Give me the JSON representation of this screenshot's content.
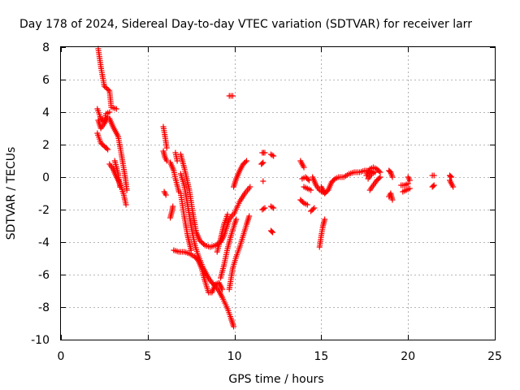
{
  "chart_data": {
    "type": "scatter",
    "title": "Day 178 of 2024, Sidereal Day-to-day VTEC variation (SDTVAR) for receiver larr",
    "xlabel": "GPS time / hours",
    "ylabel": "SDTVAR / TECUs",
    "xlim": [
      0,
      25
    ],
    "ylim": [
      -10,
      8
    ],
    "xticks": [
      0,
      5,
      10,
      15,
      20,
      25
    ],
    "yticks": [
      -10,
      -8,
      -6,
      -4,
      -2,
      0,
      2,
      4,
      6,
      8
    ],
    "grid": true,
    "marker": "plus",
    "color": "#ff0000",
    "segments": [
      [
        [
          2.15,
          7.9
        ],
        [
          2.3,
          6.8
        ],
        [
          2.5,
          5.6
        ],
        [
          2.8,
          5.3
        ],
        [
          2.9,
          4.3
        ],
        [
          3.2,
          4.2
        ]
      ],
      [
        [
          2.1,
          4.2
        ],
        [
          2.3,
          3.6
        ],
        [
          2.5,
          3.4
        ],
        [
          2.6,
          3.9
        ],
        [
          2.8,
          4.0
        ]
      ],
      [
        [
          2.15,
          3.5
        ],
        [
          2.3,
          3.0
        ],
        [
          2.5,
          3.3
        ],
        [
          2.7,
          3.7
        ]
      ],
      [
        [
          2.1,
          2.7
        ],
        [
          2.3,
          2.1
        ],
        [
          2.5,
          1.9
        ],
        [
          2.7,
          1.7
        ]
      ],
      [
        [
          2.8,
          3.6
        ],
        [
          3.0,
          3.1
        ],
        [
          3.3,
          2.5
        ],
        [
          3.5,
          1.3
        ],
        [
          3.7,
          0.0
        ],
        [
          3.8,
          -0.8
        ]
      ],
      [
        [
          2.8,
          0.8
        ],
        [
          3.0,
          0.5
        ],
        [
          3.2,
          0.0
        ],
        [
          3.4,
          -0.4
        ],
        [
          3.6,
          -1.0
        ],
        [
          3.75,
          -1.7
        ]
      ],
      [
        [
          3.1,
          1.0
        ],
        [
          3.3,
          0.2
        ],
        [
          3.4,
          -0.6
        ]
      ],
      [
        [
          5.9,
          3.1
        ],
        [
          6.0,
          2.5
        ],
        [
          6.1,
          1.8
        ]
      ],
      [
        [
          5.9,
          1.6
        ],
        [
          6.0,
          1.2
        ],
        [
          6.1,
          1.0
        ]
      ],
      [
        [
          5.95,
          -0.9
        ],
        [
          6.05,
          -1.1
        ]
      ],
      [
        [
          6.3,
          -2.5
        ],
        [
          6.4,
          -2.1
        ],
        [
          6.45,
          -1.8
        ]
      ],
      [
        [
          6.3,
          0.9
        ],
        [
          6.5,
          0.4
        ],
        [
          6.6,
          -0.1
        ],
        [
          6.8,
          -0.9
        ]
      ],
      [
        [
          6.6,
          1.5
        ],
        [
          6.7,
          1.0
        ]
      ],
      [
        [
          6.9,
          1.4
        ],
        [
          7.1,
          0.6
        ],
        [
          7.4,
          -0.8
        ],
        [
          7.6,
          -2.2
        ],
        [
          7.8,
          -3.4
        ],
        [
          8.0,
          -3.9
        ],
        [
          8.3,
          -4.2
        ],
        [
          8.6,
          -4.3
        ],
        [
          8.9,
          -4.2
        ],
        [
          9.2,
          -4.0
        ],
        [
          9.4,
          -3.6
        ],
        [
          9.7,
          -2.6
        ],
        [
          10.0,
          -2.2
        ],
        [
          10.3,
          -1.5
        ],
        [
          10.6,
          -1.0
        ],
        [
          10.9,
          -0.6
        ]
      ],
      [
        [
          6.9,
          0.2
        ],
        [
          7.1,
          -0.5
        ],
        [
          7.3,
          -1.7
        ],
        [
          7.5,
          -3.0
        ],
        [
          7.7,
          -4.1
        ],
        [
          7.9,
          -4.8
        ],
        [
          8.2,
          -5.6
        ],
        [
          8.5,
          -6.2
        ],
        [
          8.7,
          -6.5
        ],
        [
          8.9,
          -6.7
        ],
        [
          9.1,
          -7.0
        ],
        [
          9.3,
          -7.4
        ],
        [
          9.6,
          -8.1
        ],
        [
          9.8,
          -8.7
        ],
        [
          9.95,
          -9.2
        ]
      ],
      [
        [
          6.5,
          -4.5
        ],
        [
          6.8,
          -4.6
        ],
        [
          7.1,
          -4.6
        ],
        [
          7.4,
          -4.7
        ],
        [
          7.7,
          -4.9
        ],
        [
          7.9,
          -5.1
        ],
        [
          8.1,
          -5.6
        ],
        [
          8.3,
          -6.4
        ],
        [
          8.5,
          -7.1
        ],
        [
          8.7,
          -7.1
        ],
        [
          8.9,
          -6.6
        ],
        [
          9.1,
          -6.5
        ],
        [
          9.3,
          -6.9
        ]
      ],
      [
        [
          6.9,
          -1.0
        ],
        [
          7.1,
          -2.4
        ],
        [
          7.3,
          -3.6
        ],
        [
          7.5,
          -4.5
        ]
      ],
      [
        [
          9.7,
          -6.9
        ],
        [
          9.9,
          -5.6
        ],
        [
          10.1,
          -4.9
        ],
        [
          10.3,
          -4.3
        ],
        [
          10.5,
          -3.6
        ],
        [
          10.7,
          -2.9
        ],
        [
          10.85,
          -2.4
        ]
      ],
      [
        [
          9.2,
          -6.2
        ],
        [
          9.4,
          -5.4
        ],
        [
          9.6,
          -4.4
        ],
        [
          9.8,
          -3.6
        ],
        [
          10.0,
          -2.9
        ],
        [
          10.1,
          -2.6
        ]
      ],
      [
        [
          9.0,
          -4.6
        ],
        [
          9.2,
          -3.8
        ],
        [
          9.4,
          -2.9
        ],
        [
          9.6,
          -2.3
        ]
      ],
      [
        [
          9.95,
          -0.6
        ],
        [
          10.1,
          -0.1
        ],
        [
          10.3,
          0.4
        ],
        [
          10.5,
          0.8
        ],
        [
          10.7,
          1.0
        ]
      ],
      [
        [
          9.7,
          5.0
        ],
        [
          9.8,
          5.0
        ],
        [
          9.9,
          5.0
        ]
      ],
      [
        [
          11.6,
          1.5
        ],
        [
          11.75,
          1.5
        ]
      ],
      [
        [
          11.55,
          0.8
        ],
        [
          11.65,
          0.9
        ]
      ],
      [
        [
          11.6,
          -2.0
        ],
        [
          11.75,
          -1.9
        ]
      ],
      [
        [
          11.65,
          -0.25
        ]
      ],
      [
        [
          12.1,
          1.4
        ],
        [
          12.25,
          1.3
        ]
      ],
      [
        [
          12.1,
          -1.8
        ],
        [
          12.25,
          -1.9
        ]
      ],
      [
        [
          12.1,
          -3.3
        ],
        [
          12.2,
          -3.4
        ]
      ],
      [
        [
          13.8,
          1.0
        ],
        [
          14.0,
          0.6
        ]
      ],
      [
        [
          13.9,
          -0.1
        ],
        [
          14.1,
          0.0
        ],
        [
          14.3,
          -0.2
        ]
      ],
      [
        [
          13.8,
          -1.4
        ],
        [
          14.0,
          -1.6
        ],
        [
          14.2,
          -1.7
        ]
      ],
      [
        [
          14.0,
          -0.6
        ],
        [
          14.2,
          -0.7
        ],
        [
          14.4,
          -0.8
        ]
      ],
      [
        [
          14.4,
          -2.1
        ],
        [
          14.6,
          -1.9
        ]
      ],
      [
        [
          14.5,
          0.0
        ],
        [
          14.7,
          -0.5
        ],
        [
          14.9,
          -0.8
        ],
        [
          15.2,
          -1.0
        ],
        [
          15.4,
          -0.8
        ],
        [
          15.6,
          -0.3
        ],
        [
          15.8,
          -0.1
        ],
        [
          16.0,
          0.0
        ],
        [
          16.3,
          0.0
        ],
        [
          16.6,
          0.2
        ],
        [
          16.9,
          0.3
        ],
        [
          17.2,
          0.3
        ],
        [
          17.5,
          0.4
        ],
        [
          17.8,
          0.4
        ],
        [
          18.0,
          0.3
        ]
      ],
      [
        [
          14.9,
          -4.3
        ],
        [
          15.0,
          -3.6
        ],
        [
          15.1,
          -3.0
        ],
        [
          15.2,
          -2.6
        ]
      ],
      [
        [
          15.0,
          -0.6
        ],
        [
          15.1,
          -0.8
        ],
        [
          15.2,
          -1.0
        ]
      ],
      [
        [
          17.6,
          0.1
        ],
        [
          17.8,
          0.5
        ],
        [
          18.0,
          0.6
        ],
        [
          18.2,
          0.5
        ],
        [
          18.4,
          0.3
        ]
      ],
      [
        [
          17.8,
          -0.8
        ],
        [
          18.0,
          -0.5
        ],
        [
          18.2,
          -0.2
        ],
        [
          18.4,
          0.0
        ]
      ],
      [
        [
          17.7,
          -0.1
        ],
        [
          17.9,
          0.2
        ],
        [
          18.1,
          0.3
        ]
      ],
      [
        [
          18.9,
          -1.2
        ],
        [
          19.0,
          -1.0
        ],
        [
          19.1,
          -1.4
        ]
      ],
      [
        [
          18.9,
          0.4
        ],
        [
          19.0,
          0.3
        ],
        [
          19.1,
          0.0
        ]
      ],
      [
        [
          19.6,
          -0.5
        ],
        [
          19.8,
          -0.5
        ],
        [
          20.0,
          -0.4
        ]
      ],
      [
        [
          19.7,
          -0.9
        ],
        [
          19.9,
          -0.8
        ],
        [
          20.1,
          -0.7
        ]
      ],
      [
        [
          20.0,
          0.0
        ],
        [
          20.1,
          -0.2
        ]
      ],
      [
        [
          21.4,
          0.1
        ],
        [
          21.5,
          0.1
        ]
      ],
      [
        [
          21.4,
          -0.6
        ],
        [
          21.5,
          -0.5
        ]
      ],
      [
        [
          22.4,
          -0.2
        ],
        [
          22.5,
          -0.4
        ],
        [
          22.6,
          -0.6
        ]
      ],
      [
        [
          22.4,
          0.1
        ],
        [
          22.5,
          0.0
        ]
      ]
    ]
  }
}
